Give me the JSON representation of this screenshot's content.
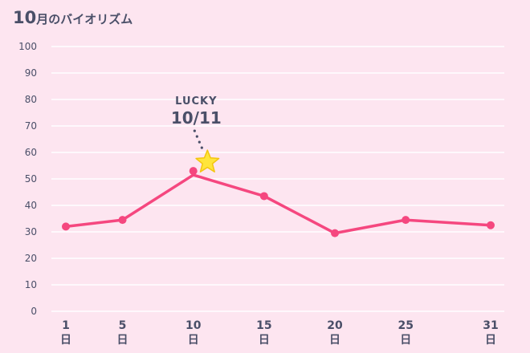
{
  "header": {
    "title_month": "10",
    "title_rest": "月のバイオリズム"
  },
  "chart_data": {
    "type": "line",
    "title": "10月のバイオリズム",
    "x": [
      1,
      5,
      10,
      15,
      20,
      25,
      31
    ],
    "x_tick_labels": [
      "1",
      "5",
      "10",
      "15",
      "20",
      "25",
      "31"
    ],
    "x_unit": "日",
    "y_ticks": [
      0,
      10,
      20,
      30,
      40,
      50,
      60,
      70,
      80,
      90,
      100
    ],
    "ylim": [
      0,
      100
    ],
    "series": [
      {
        "values": [
          32,
          34.5,
          51.5,
          43.5,
          29.5,
          34.5,
          32.5
        ],
        "color": "#f5477f"
      }
    ],
    "marker_dots": [
      32,
      34.5,
      53,
      43.5,
      29.5,
      34.5,
      32.5
    ],
    "annotation": {
      "label": "LUCKY",
      "date": "10/11",
      "x": 11,
      "y": 53,
      "icon": "star-icon",
      "color": "#ffe53b"
    },
    "grid": true
  }
}
